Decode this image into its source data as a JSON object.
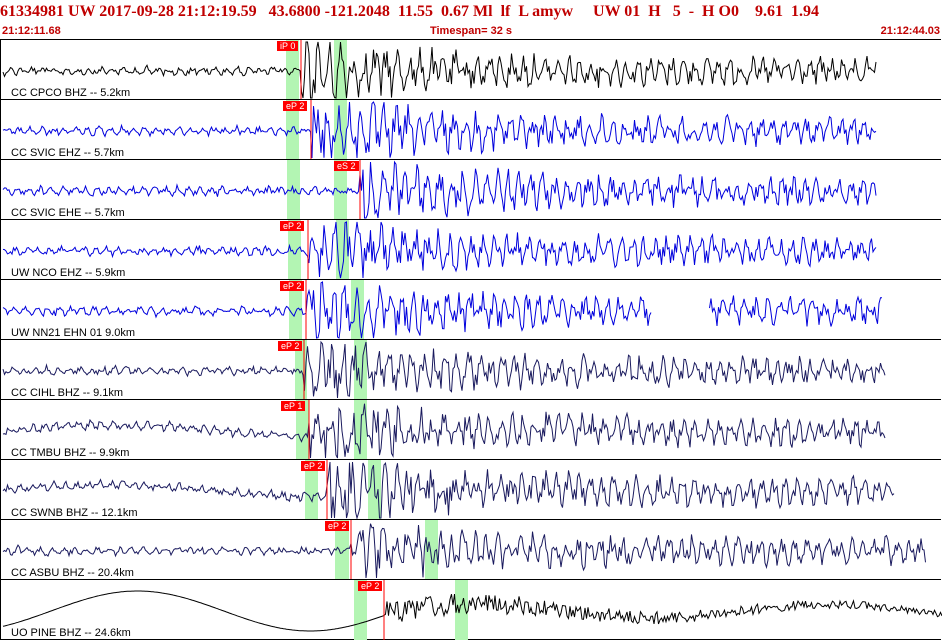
{
  "header": {
    "event_line": "61334981 UW 2017-09-28 21:12:19.59   43.6800 -121.2048  11.55  0.67 Ml  lf  L amyw     UW 01  H   5  -  H O0    9.61  1.94",
    "start_time": "21:12:11.68",
    "timespan": "Timespan=  32 s",
    "end_time": "21:12:44.03"
  },
  "colors": {
    "header_text": "#c00000",
    "pick_marker": "#ff0000",
    "window_highlight": "#b3f5b3",
    "trace_blue": "#0000dd",
    "trace_navy": "#1a1a5e",
    "trace_black": "#000000"
  },
  "traces": [
    {
      "label": "CC CPCO BHZ -- 5.2km",
      "pick": "iP 0",
      "color": "black"
    },
    {
      "label": "CC SVIC EHZ -- 5.7km",
      "pick": "eP 2",
      "color": "blue"
    },
    {
      "label": "CC SVIC EHE -- 5.7km",
      "pick": "eS 2",
      "color": "blue"
    },
    {
      "label": "UW NCO EHZ -- 5.9km",
      "pick": "eP 2",
      "color": "blue"
    },
    {
      "label": "UW NN21 EHN 01 9.0km",
      "pick": "eP 2",
      "color": "blue"
    },
    {
      "label": "CC CIHL BHZ -- 9.1km",
      "pick": "eP 2",
      "color": "navy"
    },
    {
      "label": "CC TMBU BHZ -- 9.9km",
      "pick": "eP 1",
      "color": "navy"
    },
    {
      "label": "CC SWNB BHZ -- 12.1km",
      "pick": "eP 2",
      "color": "navy"
    },
    {
      "label": "CC ASBU BHZ -- 20.4km",
      "pick": "eP 2",
      "color": "navy"
    },
    {
      "label": "UO PINE BHZ -- 24.6km",
      "pick": "eP 2",
      "color": "black"
    }
  ]
}
